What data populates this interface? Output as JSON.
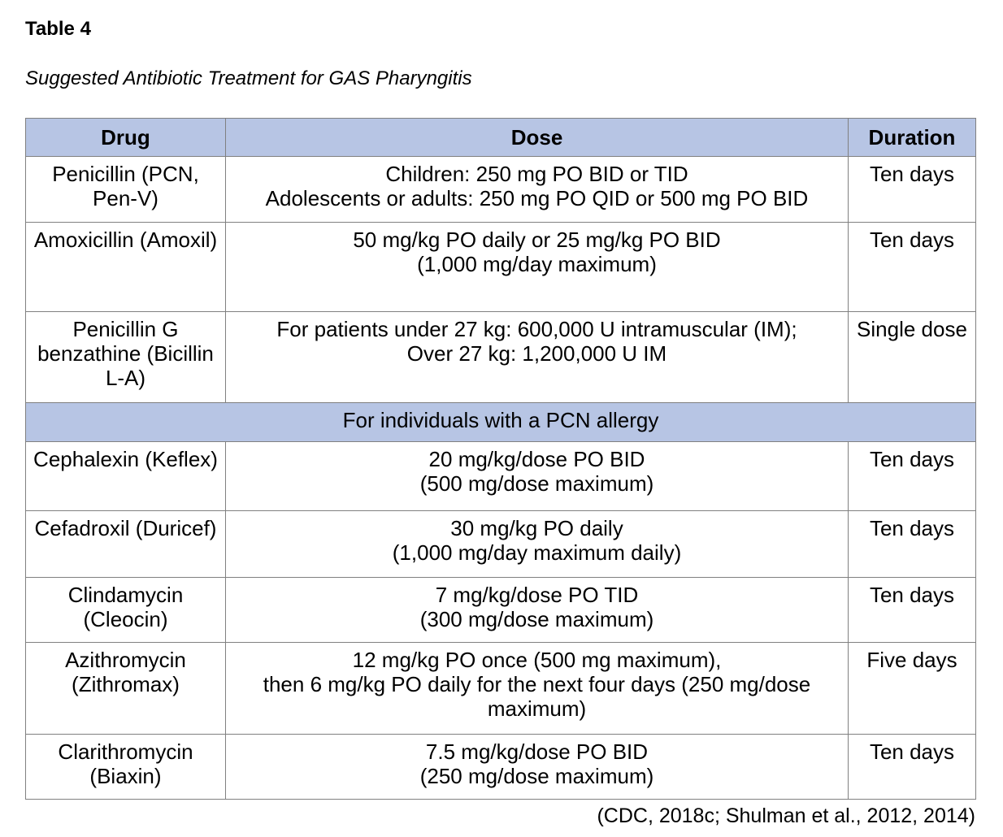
{
  "document": {
    "label": "Table 4",
    "caption": "Suggested Antibiotic Treatment for GAS Pharyngitis",
    "citation": "(CDC, 2018c; Shulman et al., 2012, 2014)"
  },
  "colors": {
    "header_bg": "#b7c5e4",
    "border": "#808080",
    "text": "#000000",
    "page_bg": "#ffffff"
  },
  "table": {
    "columns": [
      {
        "label": "Drug"
      },
      {
        "label": "Dose"
      },
      {
        "label": "Duration"
      }
    ],
    "rows": [
      {
        "drug_lines": [
          "Penicillin (PCN,",
          "Pen-V)"
        ],
        "dose_lines": [
          "Children: 250 mg PO BID or TID",
          "Adolescents or adults: 250 mg PO QID or 500 mg PO BID"
        ],
        "duration": "Ten days"
      },
      {
        "drug_lines": [
          "Amoxicillin (Amoxil)"
        ],
        "dose_lines": [
          "50 mg/kg PO daily or 25 mg/kg PO BID",
          "(1,000 mg/day maximum)"
        ],
        "duration": "Ten days"
      },
      {
        "drug_lines": [
          "Penicillin G",
          "benzathine (Bicillin",
          "L-A)"
        ],
        "dose_lines": [
          "For patients under 27 kg: 600,000 U intramuscular (IM);",
          "Over 27 kg: 1,200,000 U IM"
        ],
        "duration": "Single dose"
      }
    ],
    "section": {
      "label": "For individuals with a PCN allergy",
      "rows": [
        {
          "drug_lines": [
            "Cephalexin (Keflex)"
          ],
          "dose_lines": [
            "20 mg/kg/dose PO BID",
            "(500 mg/dose maximum)"
          ],
          "duration": "Ten days"
        },
        {
          "drug_lines": [
            "Cefadroxil (Duricef)"
          ],
          "dose_lines": [
            "30 mg/kg PO daily",
            "(1,000 mg/day maximum daily)"
          ],
          "duration": "Ten days"
        },
        {
          "drug_lines": [
            "Clindamycin",
            "(Cleocin)"
          ],
          "dose_lines": [
            "7 mg/kg/dose PO TID",
            "(300 mg/dose maximum)"
          ],
          "duration": "Ten days"
        },
        {
          "drug_lines": [
            "Azithromycin",
            "(Zithromax)"
          ],
          "dose_lines": [
            "12 mg/kg PO once (500 mg maximum),",
            "then 6 mg/kg PO daily for the next four days (250 mg/dose",
            "maximum)"
          ],
          "duration": "Five days"
        },
        {
          "drug_lines": [
            "Clarithromycin",
            "(Biaxin)"
          ],
          "dose_lines": [
            "7.5 mg/kg/dose PO BID",
            "(250 mg/dose maximum)"
          ],
          "duration": "Ten days"
        }
      ]
    }
  }
}
